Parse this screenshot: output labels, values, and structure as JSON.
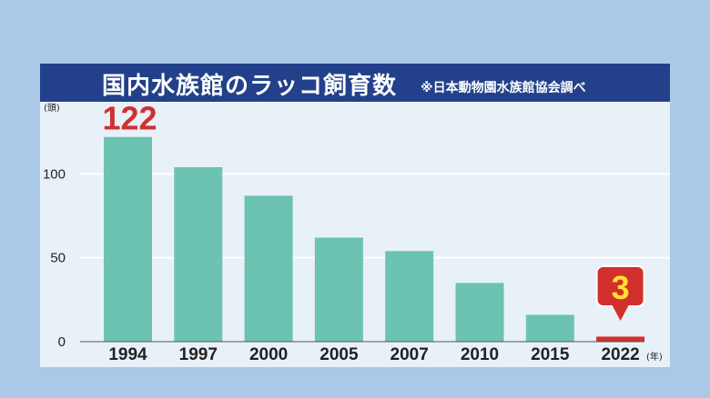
{
  "header": {
    "title": "国内水族館のラッコ飼育数",
    "source": "※日本動物園水族館協会調べ"
  },
  "colors": {
    "bar": "#6cc3b1",
    "highlight": "#d2302d",
    "title_bg": "#23418a",
    "panel": "#e9f1f8",
    "background": "#a9c9e6"
  },
  "chart_data": {
    "type": "bar",
    "title": "国内水族館のラッコ飼育数",
    "ylabel": "(頭)",
    "xlabel": "(年)",
    "categories": [
      "1994",
      "1997",
      "2000",
      "2005",
      "2007",
      "2010",
      "2015",
      "2022"
    ],
    "values": [
      122,
      104,
      87,
      62,
      54,
      35,
      16,
      3
    ],
    "ylim": [
      0,
      140
    ],
    "yticks": [
      "0",
      "50",
      "100"
    ],
    "grid": true,
    "annotations": [
      {
        "label": "122",
        "category": "1994"
      },
      {
        "label": "3",
        "category": "2022"
      }
    ]
  }
}
